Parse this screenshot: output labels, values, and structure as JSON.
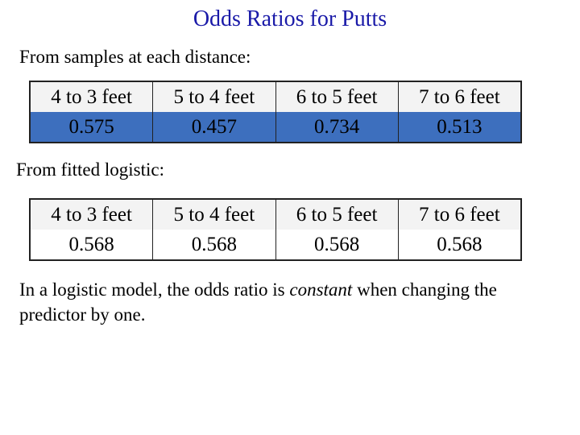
{
  "title": "Odds Ratios for Putts",
  "samples": {
    "label": "From samples at each distance:",
    "headers": [
      "4 to 3 feet",
      "5 to 4 feet",
      "6 to 5 feet",
      "7 to 6 feet"
    ],
    "values": [
      "0.575",
      "0.457",
      "0.734",
      "0.513"
    ]
  },
  "fitted": {
    "label": "From fitted logistic:",
    "headers": [
      "4 to 3 feet",
      "5 to 4 feet",
      "6 to 5 feet",
      "7 to 6 feet"
    ],
    "values": [
      "0.568",
      "0.568",
      "0.568",
      "0.568"
    ]
  },
  "note": {
    "before": "In a logistic model, the odds ratio is ",
    "emphasis": "constant",
    "after": " when changing the predictor by one."
  },
  "colors": {
    "title": "#1a1aa8",
    "sample_values_fill": "#3d6fbe"
  }
}
